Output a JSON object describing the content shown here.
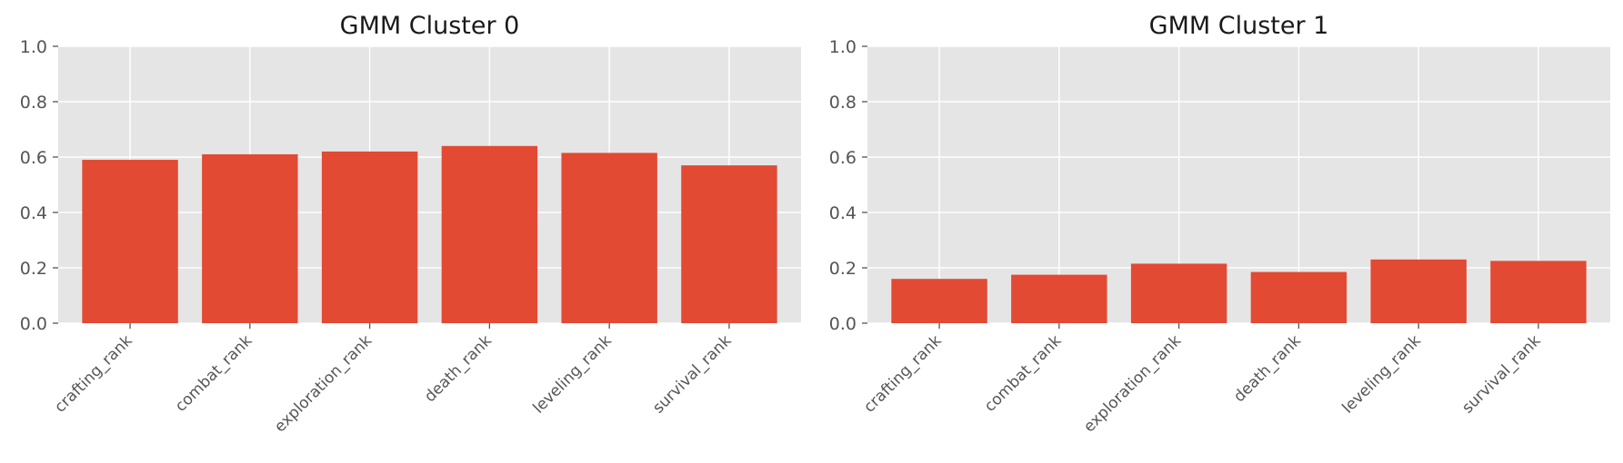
{
  "chart_data": [
    {
      "type": "bar",
      "title": "GMM Cluster 0",
      "categories": [
        "crafting_rank",
        "combat_rank",
        "exploration_rank",
        "death_rank",
        "leveling_rank",
        "survival_rank"
      ],
      "values": [
        0.59,
        0.61,
        0.62,
        0.64,
        0.615,
        0.57
      ],
      "xlabel": "",
      "ylabel": "",
      "ylim": [
        0,
        1.0
      ],
      "yticks": [
        "0.0",
        "0.2",
        "0.4",
        "0.6",
        "0.8",
        "1.0"
      ],
      "grid": true,
      "bar_color": "#E24A33"
    },
    {
      "type": "bar",
      "title": "GMM Cluster 1",
      "categories": [
        "crafting_rank",
        "combat_rank",
        "exploration_rank",
        "death_rank",
        "leveling_rank",
        "survival_rank"
      ],
      "values": [
        0.16,
        0.175,
        0.215,
        0.185,
        0.23,
        0.225
      ],
      "xlabel": "",
      "ylabel": "",
      "ylim": [
        0,
        1.0
      ],
      "yticks": [
        "0.0",
        "0.2",
        "0.4",
        "0.6",
        "0.8",
        "1.0"
      ],
      "grid": true,
      "bar_color": "#E24A33"
    }
  ]
}
